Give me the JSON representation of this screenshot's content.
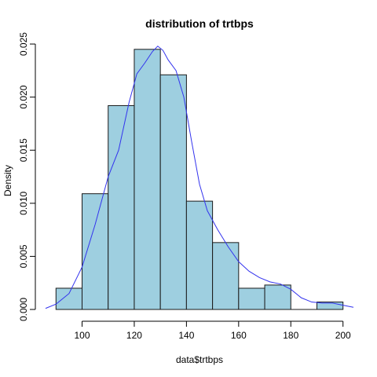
{
  "chart_data": {
    "type": "bar",
    "subtype": "histogram-with-density",
    "title": "distribution of trtbps",
    "xlabel": "data$trtbps",
    "ylabel": "Density",
    "bins": [
      {
        "x0": 90,
        "x1": 100,
        "density": 0.002
      },
      {
        "x0": 100,
        "x1": 110,
        "density": 0.0109
      },
      {
        "x0": 110,
        "x1": 120,
        "density": 0.0192
      },
      {
        "x0": 120,
        "x1": 130,
        "density": 0.0245
      },
      {
        "x0": 130,
        "x1": 140,
        "density": 0.0221
      },
      {
        "x0": 140,
        "x1": 150,
        "density": 0.0102
      },
      {
        "x0": 150,
        "x1": 160,
        "density": 0.0063
      },
      {
        "x0": 160,
        "x1": 170,
        "density": 0.002
      },
      {
        "x0": 170,
        "x1": 180,
        "density": 0.0023
      },
      {
        "x0": 180,
        "x1": 190,
        "density": 0.0
      },
      {
        "x0": 190,
        "x1": 200,
        "density": 0.0007
      }
    ],
    "density_curve": {
      "x": [
        86,
        90,
        95,
        100,
        105,
        110,
        114,
        118,
        121,
        124,
        127,
        129,
        131,
        133,
        136,
        139,
        142,
        145,
        148,
        152,
        156,
        160,
        164,
        168,
        172,
        176,
        180,
        184,
        188,
        192,
        196,
        200,
        204
      ],
      "y": [
        0.0001,
        0.0005,
        0.0015,
        0.004,
        0.008,
        0.0125,
        0.015,
        0.0195,
        0.0222,
        0.0232,
        0.0243,
        0.0248,
        0.0244,
        0.0235,
        0.0225,
        0.02,
        0.0158,
        0.0118,
        0.0093,
        0.0075,
        0.0059,
        0.0045,
        0.0036,
        0.003,
        0.0026,
        0.0024,
        0.0019,
        0.0011,
        0.0007,
        0.0006,
        0.0006,
        0.0004,
        0.0002
      ]
    },
    "x_ticks": [
      100,
      120,
      140,
      160,
      180,
      200
    ],
    "y_ticks": [
      "0.000",
      "0.005",
      "0.010",
      "0.015",
      "0.020",
      "0.025"
    ],
    "xlim": [
      86,
      204
    ],
    "ylim": [
      0,
      0.0253
    ],
    "grid": false,
    "colors": {
      "bar_fill": "#9ecfe0",
      "bar_stroke": "#1a1a1a",
      "curve": "#3333ee",
      "axis": "#000000"
    }
  }
}
